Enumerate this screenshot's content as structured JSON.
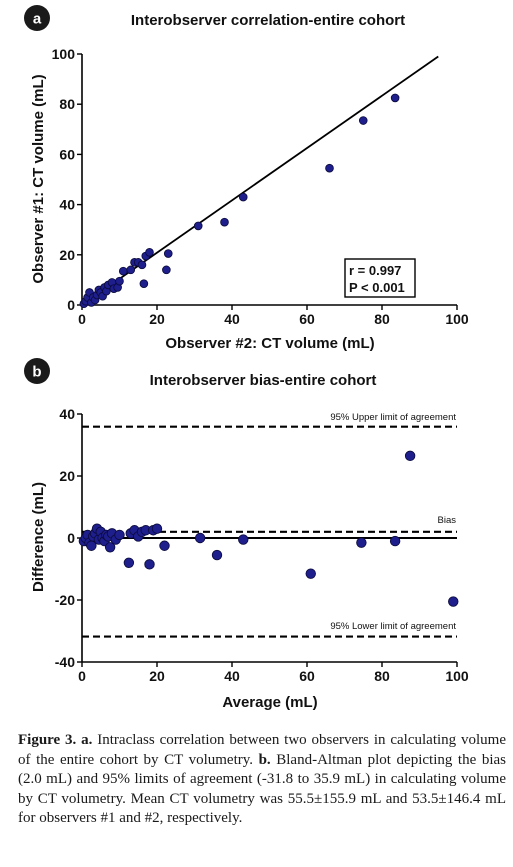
{
  "panels": {
    "a": {
      "letter": "a",
      "title": "Interobserver correlation-entire cohort",
      "stats": [
        "r = 0.997",
        "P < 0.001"
      ]
    },
    "b": {
      "letter": "b",
      "title": "Interobserver bias-entire cohort",
      "upper_label": "95% Upper limit of agreement",
      "bias_label": "Bias",
      "lower_label": "95% Lower limit of agreement"
    }
  },
  "chart_data": [
    {
      "type": "scatter",
      "title": "Interobserver correlation-entire cohort",
      "xlabel": "Observer #2: CT volume (mL)",
      "ylabel": "Observer #1: CT volume (mL)",
      "xlim": [
        0,
        100
      ],
      "ylim": [
        0,
        100
      ],
      "xticks": [
        0,
        20,
        40,
        60,
        80,
        100
      ],
      "yticks": [
        0,
        20,
        40,
        60,
        80,
        100
      ],
      "regression_line": {
        "x": [
          0,
          95
        ],
        "y": [
          0,
          99
        ]
      },
      "annotation": [
        "r = 0.997",
        "P < 0.001"
      ],
      "points": [
        [
          0.5,
          0.5
        ],
        [
          1,
          1.5
        ],
        [
          1.5,
          3
        ],
        [
          2,
          5
        ],
        [
          2.5,
          1
        ],
        [
          3,
          3
        ],
        [
          3.5,
          2
        ],
        [
          4,
          4
        ],
        [
          4.5,
          6
        ],
        [
          5,
          5
        ],
        [
          5.5,
          3.5
        ],
        [
          6,
          7
        ],
        [
          6.5,
          5.5
        ],
        [
          7,
          8
        ],
        [
          8,
          9
        ],
        [
          8.5,
          6.5
        ],
        [
          9.5,
          7
        ],
        [
          10,
          9.5
        ],
        [
          11,
          13.5
        ],
        [
          13,
          14
        ],
        [
          14,
          17
        ],
        [
          15,
          17
        ],
        [
          16,
          16
        ],
        [
          17,
          19.5
        ],
        [
          18,
          21
        ],
        [
          16.5,
          8.5
        ],
        [
          22.5,
          14
        ],
        [
          23,
          20.5
        ],
        [
          31,
          31.5
        ],
        [
          38,
          33
        ],
        [
          43,
          43
        ],
        [
          66,
          54.5
        ],
        [
          75,
          73.5
        ],
        [
          83.5,
          82.5
        ]
      ]
    },
    {
      "type": "scatter",
      "title": "Interobserver bias-entire cohort",
      "xlabel": "Average (mL)",
      "ylabel": "Difference (mL)",
      "xlim": [
        0,
        100
      ],
      "ylim": [
        -40,
        40
      ],
      "xticks": [
        0,
        20,
        40,
        60,
        80,
        100
      ],
      "yticks": [
        -40,
        -20,
        0,
        20,
        40
      ],
      "reference_lines": [
        {
          "name": "95% Upper limit of agreement",
          "y": 35.9,
          "style": "dashed"
        },
        {
          "name": "Bias",
          "y": 2.0,
          "style": "dashed"
        },
        {
          "y": 0,
          "style": "solid"
        },
        {
          "name": "95% Lower limit of agreement",
          "y": -31.8,
          "style": "dashed"
        }
      ],
      "points": [
        [
          0.5,
          -1
        ],
        [
          1,
          0
        ],
        [
          1.5,
          1
        ],
        [
          2,
          -1.5
        ],
        [
          2.5,
          -2.5
        ],
        [
          3,
          0.5
        ],
        [
          3.5,
          1.5
        ],
        [
          4,
          3
        ],
        [
          4.5,
          -0.5
        ],
        [
          5,
          2
        ],
        [
          5.5,
          0
        ],
        [
          6,
          -1
        ],
        [
          6.5,
          1
        ],
        [
          7,
          0.5
        ],
        [
          7.5,
          -3
        ],
        [
          8,
          1.5
        ],
        [
          9,
          -0.5
        ],
        [
          10,
          1
        ],
        [
          12.5,
          -8
        ],
        [
          13,
          1.5
        ],
        [
          14,
          2.5
        ],
        [
          15,
          0.5
        ],
        [
          16,
          2
        ],
        [
          17,
          2.5
        ],
        [
          18,
          -8.5
        ],
        [
          19,
          2.5
        ],
        [
          20,
          3
        ],
        [
          22,
          -2.5
        ],
        [
          31.5,
          0
        ],
        [
          36,
          -5.5
        ],
        [
          43,
          -0.5
        ],
        [
          61,
          -11.5
        ],
        [
          74.5,
          -1.5
        ],
        [
          83.5,
          -1
        ],
        [
          87.5,
          26.5
        ],
        [
          99,
          -20.5
        ]
      ]
    }
  ],
  "caption": {
    "fig_label": "Figure 3.",
    "a_label": "a.",
    "part_a": " Intraclass correlation between two observers in calculating volume of the entire cohort by CT volumetry. ",
    "b_label": "b.",
    "part_b": " Bland-Altman plot depicting the bias (2.0 mL) and 95% limits of agreement (-31.8 to 35.9 mL) in calculating volume by CT volumetry. Mean CT volumetry was 55.5±155.9 mL and 53.5±146.4 mL for observers #1 and #2, respectively."
  },
  "colors": {
    "marker": "#1e1e8c",
    "marker_edge": "#0a0a3c",
    "line": "#000000"
  }
}
